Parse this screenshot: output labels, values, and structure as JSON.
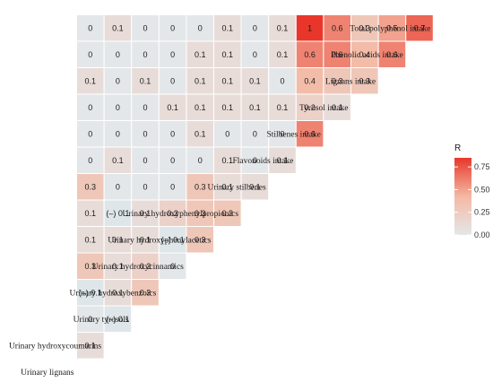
{
  "chart_data": {
    "type": "heatmap",
    "variables": [
      "Urinary lignans",
      "Urinary hydroxycoumarins",
      "Urinary tyrosols",
      "Urinary hydroxybenzoics",
      "Urinary hydroxycinnamics",
      "Urinary hydroxyphenylacetics",
      "Urinary hydroxyphenylpropionics",
      "Urinary stilbenes",
      "Flavonoids intake",
      "Stilbenes intake",
      "Tyrosol intake",
      "Lignans intake",
      "Phenolic acids intake",
      "Total polyphenol intake"
    ],
    "cells": [
      {
        "row": 1,
        "col": 0,
        "value": 0.1,
        "label": "0.1"
      },
      {
        "row": 2,
        "col": 0,
        "value": 0.0,
        "label": "0"
      },
      {
        "row": 2,
        "col": 1,
        "value": 0.0,
        "label": "(–) 0.1"
      },
      {
        "row": 3,
        "col": 0,
        "value": 0.0,
        "label": "(–) 0.1"
      },
      {
        "row": 3,
        "col": 1,
        "value": 0.1,
        "label": "0.1"
      },
      {
        "row": 3,
        "col": 2,
        "value": 0.3,
        "label": "0.3"
      },
      {
        "row": 4,
        "col": 0,
        "value": 0.3,
        "label": "0.3"
      },
      {
        "row": 4,
        "col": 1,
        "value": 0.1,
        "label": "0.1"
      },
      {
        "row": 4,
        "col": 2,
        "value": 0.2,
        "label": "0.2"
      },
      {
        "row": 4,
        "col": 3,
        "value": 0.0,
        "label": "0"
      },
      {
        "row": 5,
        "col": 0,
        "value": 0.1,
        "label": "0.1"
      },
      {
        "row": 5,
        "col": 1,
        "value": 0.1,
        "label": "0.1"
      },
      {
        "row": 5,
        "col": 2,
        "value": 0.1,
        "label": "0.1"
      },
      {
        "row": 5,
        "col": 3,
        "value": 0.0,
        "label": "(–) 0.1"
      },
      {
        "row": 5,
        "col": 4,
        "value": 0.3,
        "label": "0.3"
      },
      {
        "row": 6,
        "col": 0,
        "value": 0.1,
        "label": "0.1"
      },
      {
        "row": 6,
        "col": 1,
        "value": 0.0,
        "label": "(–) 0.1"
      },
      {
        "row": 6,
        "col": 2,
        "value": 0.1,
        "label": "0.1"
      },
      {
        "row": 6,
        "col": 3,
        "value": 0.2,
        "label": "0.2"
      },
      {
        "row": 6,
        "col": 4,
        "value": 0.3,
        "label": "0.3"
      },
      {
        "row": 6,
        "col": 5,
        "value": 0.3,
        "label": "0.3"
      },
      {
        "row": 7,
        "col": 0,
        "value": 0.3,
        "label": "0.3"
      },
      {
        "row": 7,
        "col": 1,
        "value": 0.0,
        "label": "0"
      },
      {
        "row": 7,
        "col": 2,
        "value": 0.0,
        "label": "0"
      },
      {
        "row": 7,
        "col": 3,
        "value": 0.0,
        "label": "0"
      },
      {
        "row": 7,
        "col": 4,
        "value": 0.3,
        "label": "0.3"
      },
      {
        "row": 7,
        "col": 5,
        "value": 0.1,
        "label": "0.1"
      },
      {
        "row": 7,
        "col": 6,
        "value": 0.1,
        "label": "0.1"
      },
      {
        "row": 8,
        "col": 0,
        "value": 0.0,
        "label": "0"
      },
      {
        "row": 8,
        "col": 1,
        "value": 0.1,
        "label": "0.1"
      },
      {
        "row": 8,
        "col": 2,
        "value": 0.0,
        "label": "0"
      },
      {
        "row": 8,
        "col": 3,
        "value": 0.0,
        "label": "0"
      },
      {
        "row": 8,
        "col": 4,
        "value": 0.0,
        "label": "0"
      },
      {
        "row": 8,
        "col": 5,
        "value": 0.1,
        "label": "0.1"
      },
      {
        "row": 8,
        "col": 6,
        "value": 0.0,
        "label": "0"
      },
      {
        "row": 8,
        "col": 7,
        "value": 0.1,
        "label": "0.1"
      },
      {
        "row": 9,
        "col": 0,
        "value": 0.0,
        "label": "0"
      },
      {
        "row": 9,
        "col": 1,
        "value": 0.0,
        "label": "0"
      },
      {
        "row": 9,
        "col": 2,
        "value": 0.0,
        "label": "0"
      },
      {
        "row": 9,
        "col": 3,
        "value": 0.0,
        "label": "0"
      },
      {
        "row": 9,
        "col": 4,
        "value": 0.1,
        "label": "0.1"
      },
      {
        "row": 9,
        "col": 5,
        "value": 0.0,
        "label": "0"
      },
      {
        "row": 9,
        "col": 6,
        "value": 0.0,
        "label": "0"
      },
      {
        "row": 9,
        "col": 7,
        "value": 0.0,
        "label": "0"
      },
      {
        "row": 9,
        "col": 8,
        "value": 0.6,
        "label": "0.6"
      },
      {
        "row": 10,
        "col": 0,
        "value": 0.0,
        "label": "0"
      },
      {
        "row": 10,
        "col": 1,
        "value": 0.0,
        "label": "0"
      },
      {
        "row": 10,
        "col": 2,
        "value": 0.0,
        "label": "0"
      },
      {
        "row": 10,
        "col": 3,
        "value": 0.1,
        "label": "0.1"
      },
      {
        "row": 10,
        "col": 4,
        "value": 0.1,
        "label": "0.1"
      },
      {
        "row": 10,
        "col": 5,
        "value": 0.1,
        "label": "0.1"
      },
      {
        "row": 10,
        "col": 6,
        "value": 0.1,
        "label": "0.1"
      },
      {
        "row": 10,
        "col": 7,
        "value": 0.1,
        "label": "0.1"
      },
      {
        "row": 10,
        "col": 8,
        "value": 0.2,
        "label": "0.2"
      },
      {
        "row": 10,
        "col": 9,
        "value": 0.1,
        "label": "0.1"
      },
      {
        "row": 11,
        "col": 0,
        "value": 0.1,
        "label": "0.1"
      },
      {
        "row": 11,
        "col": 1,
        "value": 0.0,
        "label": "0"
      },
      {
        "row": 11,
        "col": 2,
        "value": 0.1,
        "label": "0.1"
      },
      {
        "row": 11,
        "col": 3,
        "value": 0.0,
        "label": "0"
      },
      {
        "row": 11,
        "col": 4,
        "value": 0.1,
        "label": "0.1"
      },
      {
        "row": 11,
        "col": 5,
        "value": 0.1,
        "label": "0.1"
      },
      {
        "row": 11,
        "col": 6,
        "value": 0.1,
        "label": "0.1"
      },
      {
        "row": 11,
        "col": 7,
        "value": 0.0,
        "label": "0"
      },
      {
        "row": 11,
        "col": 8,
        "value": 0.4,
        "label": "0.4"
      },
      {
        "row": 11,
        "col": 9,
        "value": 0.3,
        "label": "0.3"
      },
      {
        "row": 11,
        "col": 10,
        "value": 0.3,
        "label": "0.3"
      },
      {
        "row": 12,
        "col": 0,
        "value": 0.0,
        "label": "0"
      },
      {
        "row": 12,
        "col": 1,
        "value": 0.0,
        "label": "0"
      },
      {
        "row": 12,
        "col": 2,
        "value": 0.0,
        "label": "0"
      },
      {
        "row": 12,
        "col": 3,
        "value": 0.0,
        "label": "0"
      },
      {
        "row": 12,
        "col": 4,
        "value": 0.1,
        "label": "0.1"
      },
      {
        "row": 12,
        "col": 5,
        "value": 0.1,
        "label": "0.1"
      },
      {
        "row": 12,
        "col": 6,
        "value": 0.0,
        "label": "0"
      },
      {
        "row": 12,
        "col": 7,
        "value": 0.1,
        "label": "0.1"
      },
      {
        "row": 12,
        "col": 8,
        "value": 0.6,
        "label": "0.6"
      },
      {
        "row": 12,
        "col": 9,
        "value": 0.6,
        "label": "0.6"
      },
      {
        "row": 12,
        "col": 10,
        "value": 0.4,
        "label": "0.4"
      },
      {
        "row": 12,
        "col": 11,
        "value": 0.6,
        "label": "0.6"
      },
      {
        "row": 13,
        "col": 0,
        "value": 0.0,
        "label": "0"
      },
      {
        "row": 13,
        "col": 1,
        "value": 0.1,
        "label": "0.1"
      },
      {
        "row": 13,
        "col": 2,
        "value": 0.0,
        "label": "0"
      },
      {
        "row": 13,
        "col": 3,
        "value": 0.0,
        "label": "0"
      },
      {
        "row": 13,
        "col": 4,
        "value": 0.0,
        "label": "0"
      },
      {
        "row": 13,
        "col": 5,
        "value": 0.1,
        "label": "0.1"
      },
      {
        "row": 13,
        "col": 6,
        "value": 0.0,
        "label": "0"
      },
      {
        "row": 13,
        "col": 7,
        "value": 0.1,
        "label": "0.1"
      },
      {
        "row": 13,
        "col": 8,
        "value": 1.0,
        "label": "1"
      },
      {
        "row": 13,
        "col": 9,
        "value": 0.6,
        "label": "0.6"
      },
      {
        "row": 13,
        "col": 10,
        "value": 0.3,
        "label": "0.3"
      },
      {
        "row": 13,
        "col": 11,
        "value": 0.5,
        "label": "0.5"
      },
      {
        "row": 13,
        "col": 12,
        "value": 0.7,
        "label": "0.7"
      }
    ],
    "legend": {
      "title": "R",
      "ticks": [
        0.75,
        0.5,
        0.25,
        0.0
      ],
      "tick_labels": [
        "0.75",
        "0.50",
        "0.25",
        "0.00"
      ],
      "range": [
        0,
        0.85
      ],
      "placement": "right"
    },
    "colors": {
      "low": "#e4e7e9",
      "mid": "#f4b9a4",
      "high": "#e8372a",
      "negative": "#dfe6ea"
    }
  }
}
